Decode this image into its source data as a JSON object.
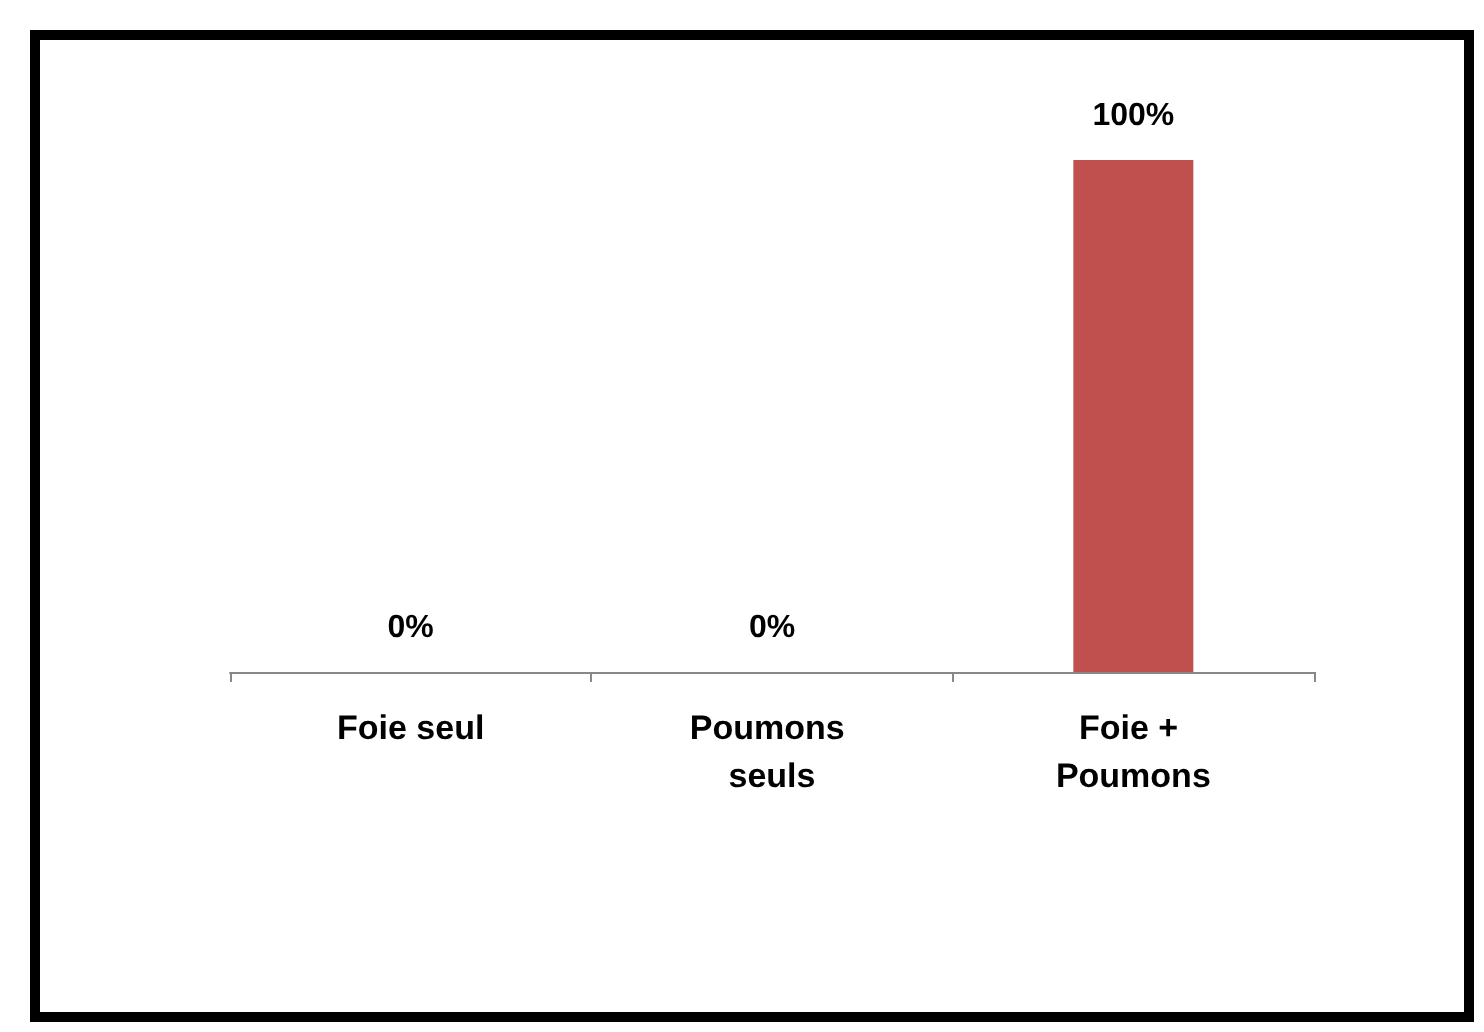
{
  "chart_data": {
    "type": "bar",
    "categories": [
      "Foie seul",
      "Poumons seuls",
      "Foie + Poumons"
    ],
    "values": [
      0,
      0,
      100
    ],
    "value_labels": [
      "0%",
      "0%",
      "100%"
    ],
    "color": "#c0504d"
  }
}
